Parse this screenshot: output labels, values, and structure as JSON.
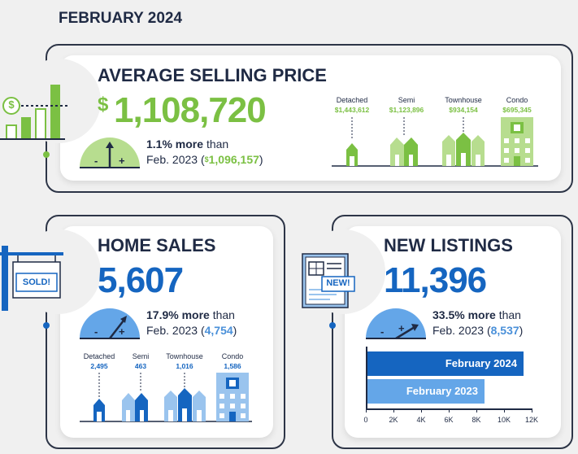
{
  "header": {
    "date": "FEBRUARY 2024"
  },
  "price": {
    "title": "AVERAGE SELLING PRICE",
    "currency": "$",
    "value": "1,108,720",
    "change": "1.1% more",
    "than": "than",
    "prev_prefix": "Feb. 2023 (",
    "prev_currency": "$",
    "prev_value": "1,096,157",
    "prev_suffix": ")",
    "types": [
      {
        "label": "Detached",
        "value": "$1,443,612"
      },
      {
        "label": "Semi",
        "value": "$1,123,896"
      },
      {
        "label": "Townhouse",
        "value": "$934,154"
      },
      {
        "label": "Condo",
        "value": "$695,345"
      }
    ],
    "icon_label": "$",
    "accent": "#7bc043"
  },
  "sales": {
    "title": "HOME SALES",
    "value": "5,607",
    "change": "17.9% more",
    "than": "than",
    "prev_prefix": "Feb. 2023 (",
    "prev_value": "4,754",
    "prev_suffix": ")",
    "sign_label": "SOLD!",
    "types": [
      {
        "label": "Detached",
        "value": "2,495"
      },
      {
        "label": "Semi",
        "value": "463"
      },
      {
        "label": "Townhouse",
        "value": "1,016"
      },
      {
        "label": "Condo",
        "value": "1,586"
      }
    ],
    "accent": "#1565c0"
  },
  "listings": {
    "title": "NEW LISTINGS",
    "value": "11,396",
    "change": "33.5% more",
    "than": "than",
    "prev_prefix": "Feb. 2023 (",
    "prev_value": "8,537",
    "prev_suffix": ")",
    "flyer_label": "NEW!",
    "accent": "#1565c0"
  },
  "chart_data": {
    "type": "bar",
    "orientation": "horizontal",
    "categories": [
      "February 2024",
      "February 2023"
    ],
    "values": [
      11396,
      8537
    ],
    "colors": [
      "#1565c0",
      "#64a6e8"
    ],
    "xlim": [
      0,
      12000
    ],
    "xticks": [
      "0",
      "2K",
      "4K",
      "6K",
      "8K",
      "10K",
      "12K"
    ],
    "grid": false
  }
}
